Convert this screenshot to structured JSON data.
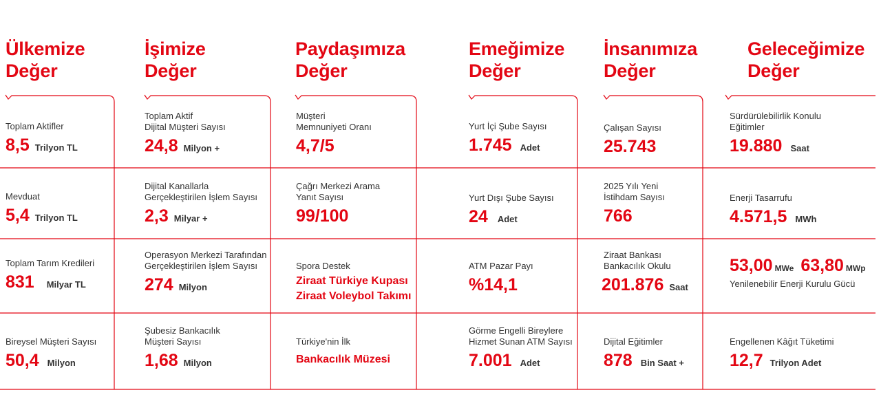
{
  "colors": {
    "accent": "#e30613",
    "text": "#333333",
    "background": "#ffffff"
  },
  "columns": [
    {
      "heading": [
        "Ülkemize",
        "Değer"
      ],
      "cells": [
        {
          "label": [
            "Toplam Aktifler"
          ],
          "value": "8,5",
          "unit": "Trilyon TL"
        },
        {
          "label": [
            "Mevduat"
          ],
          "value": "5,4",
          "unit": "Trilyon TL"
        },
        {
          "label": [
            "Toplam Tarım Kredileri"
          ],
          "value": "831",
          "unit": "Milyar TL"
        },
        {
          "label": [
            "Bireysel Müşteri Sayısı"
          ],
          "value": "50,4",
          "unit": "Milyon"
        }
      ]
    },
    {
      "heading": [
        "İşimize",
        "Değer"
      ],
      "cells": [
        {
          "label": [
            "Toplam Aktif",
            "Dijital Müşteri Sayısı"
          ],
          "value": "24,8",
          "unit": "Milyon +"
        },
        {
          "label": [
            "Dijital Kanallarla",
            "Gerçekleştirilen İşlem Sayısı"
          ],
          "value": "2,3",
          "unit": "Milyar +"
        },
        {
          "label": [
            "Operasyon Merkezi Tarafından",
            "Gerçekleştirilen İşlem Sayısı"
          ],
          "value": "274",
          "unit": "Milyon"
        },
        {
          "label": [
            "Şubesiz Bankacılık",
            "Müşteri Sayısı"
          ],
          "value": "1,68",
          "unit": "Milyon"
        }
      ]
    },
    {
      "heading": [
        "Paydaşımıza",
        "Değer"
      ],
      "cells": [
        {
          "label": [
            "Müşteri",
            "Memnuniyeti Oranı"
          ],
          "value": "4,7/5"
        },
        {
          "label": [
            "Çağrı Merkezi Arama",
            "Yanıt Sayısı"
          ],
          "value": "99/100"
        },
        {
          "label": [
            "Spora Destek"
          ],
          "red_text": [
            "Ziraat Türkiye Kupası",
            "Ziraat Voleybol Takımı"
          ]
        },
        {
          "label": [
            "Türkiye'nin İlk"
          ],
          "red_text": [
            "Bankacılık Müzesi"
          ]
        }
      ]
    },
    {
      "heading": [
        "Emeğimize",
        "Değer"
      ],
      "cells": [
        {
          "label": [
            "Yurt İçi Şube Sayısı"
          ],
          "value": "1.745",
          "unit": "Adet"
        },
        {
          "label": [
            "Yurt Dışı Şube Sayısı"
          ],
          "value": "24",
          "unit": "Adet"
        },
        {
          "label": [
            "ATM Pazar Payı"
          ],
          "value": "%14,1"
        },
        {
          "label": [
            "Görme Engelli Bireylere",
            "Hizmet Sunan ATM Sayısı"
          ],
          "value": "7.001",
          "unit": "Adet"
        }
      ]
    },
    {
      "heading": [
        "İnsanımıza",
        "Değer"
      ],
      "cells": [
        {
          "label": [
            "Çalışan Sayısı"
          ],
          "value": "25.743"
        },
        {
          "label": [
            "2025 Yılı Yeni",
            "İstihdam Sayısı"
          ],
          "value": "766"
        },
        {
          "label": [
            "Ziraat Bankası",
            "Bankacılık Okulu"
          ],
          "value": "201.876",
          "unit": "Saat"
        },
        {
          "label": [
            "Dijital Eğitimler"
          ],
          "value": "878",
          "unit": "Bin Saat +"
        }
      ]
    },
    {
      "heading": [
        "Geleceğimize",
        "Değer"
      ],
      "cells": [
        {
          "label": [
            "Sürdürülebilirlik Konulu",
            "Eğitimler"
          ],
          "value": "19.880",
          "unit": "Saat"
        },
        {
          "label": [
            "Enerji Tasarrufu"
          ],
          "value": "4.571,5",
          "unit": "MWh"
        },
        {
          "value": "53,00",
          "unit": "MWe",
          "value2": "63,80",
          "unit2": "MWp",
          "label_below": "Yenilenebilir Enerji Kurulu Gücü"
        },
        {
          "label": [
            "Engellenen Kâğıt Tüketimi"
          ],
          "value": "12,7",
          "unit": "Trilyon Adet"
        }
      ]
    }
  ]
}
